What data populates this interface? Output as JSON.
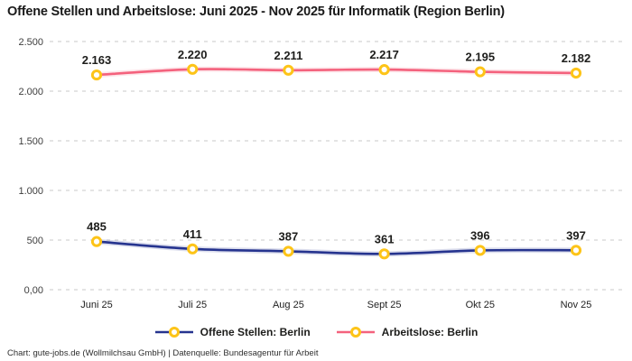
{
  "title": "Offene Stellen und Arbeitslose: Juni 2025 - Nov 2025 für Informatik (Region Berlin)",
  "footer": "Chart: gute-jobs.de (Wollmilchsau GmbH) | Datenquelle: Bundesagentur für Arbeit",
  "colors": {
    "open_positions": "#26348f",
    "unemployed": "#f4627d",
    "marker": "#fdc418",
    "grid": "#c9c9c9",
    "text": "#1d1d1b"
  },
  "chart_data": {
    "type": "line",
    "title": "Offene Stellen und Arbeitslose: Juni 2025 - Nov 2025 für Informatik (Region Berlin)",
    "categories": [
      "Juni 25",
      "Juli 25",
      "Aug 25",
      "Sept 25",
      "Okt 25",
      "Nov 25"
    ],
    "series": [
      {
        "name": "Offene Stellen: Berlin",
        "color_key": "open_positions",
        "values": [
          485,
          411,
          387,
          361,
          396,
          397
        ],
        "labels": [
          "485",
          "411",
          "387",
          "361",
          "396",
          "397"
        ]
      },
      {
        "name": "Arbeitslose: Berlin",
        "color_key": "unemployed",
        "values": [
          2163,
          2220,
          2211,
          2217,
          2195,
          2182
        ],
        "labels": [
          "2.163",
          "2.220",
          "2.211",
          "2.217",
          "2.195",
          "2.182"
        ]
      }
    ],
    "y_ticks": [
      {
        "value": 0,
        "label": "0,00"
      },
      {
        "value": 500,
        "label": "500"
      },
      {
        "value": 1000,
        "label": "1.000"
      },
      {
        "value": 1500,
        "label": "1.500"
      },
      {
        "value": 2000,
        "label": "2.000"
      },
      {
        "value": 2500,
        "label": "2.500"
      }
    ],
    "ylim": [
      0,
      2500
    ],
    "grid": "dashed-horizontal",
    "legend_position": "bottom",
    "marker_style": "yellow-ring-white-fill"
  }
}
